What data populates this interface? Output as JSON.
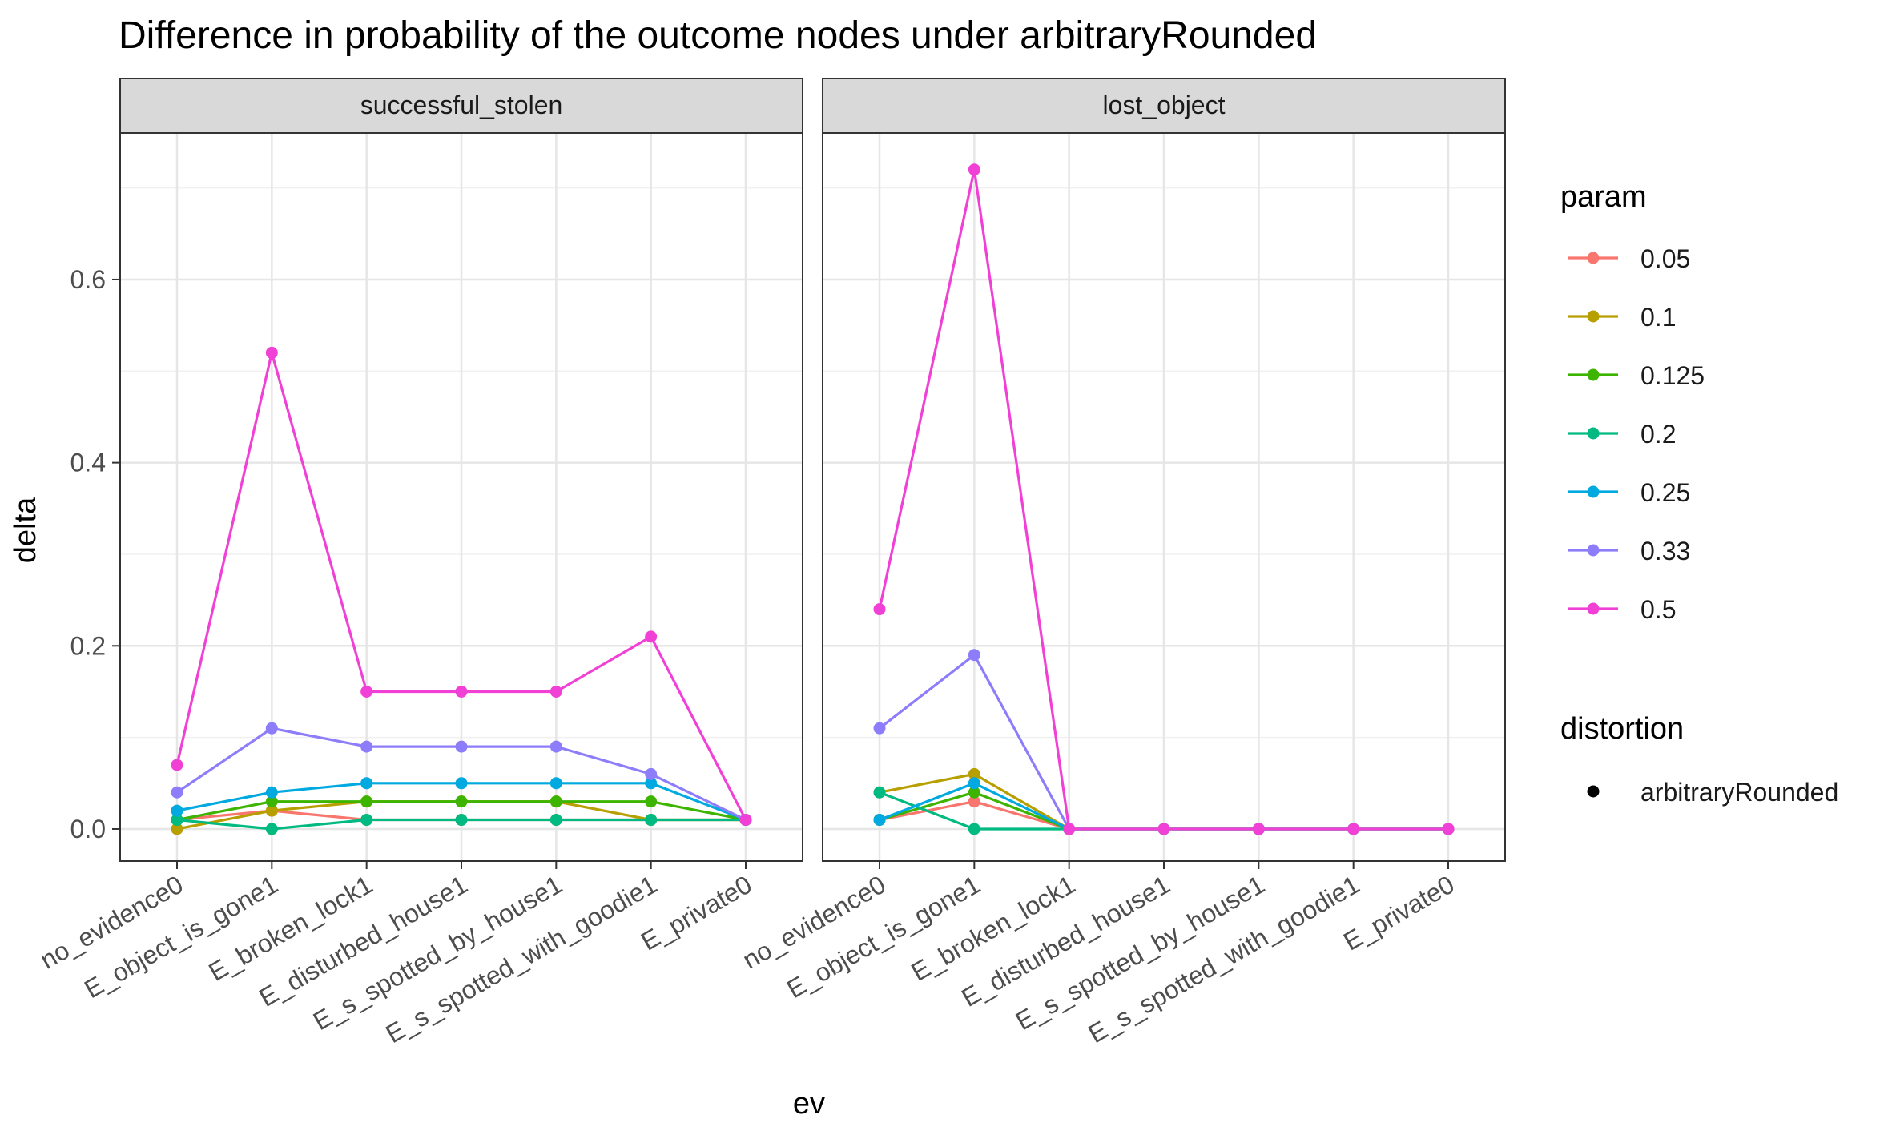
{
  "chart_data": {
    "type": "line",
    "title": "Difference in probability of the outcome nodes under arbitraryRounded",
    "xlabel": "ev",
    "ylabel": "delta",
    "ylim": [
      -0.035,
      0.76
    ],
    "yticks": [
      0.0,
      0.2,
      0.4,
      0.6
    ],
    "ytick_labels": [
      "0.0",
      "0.2",
      "0.4",
      "0.6"
    ],
    "grid": true,
    "legend_position": "right",
    "categories": [
      "no_evidence0",
      "E_object_is_gone1",
      "E_broken_lock1",
      "E_disturbed_house1",
      "E_s_spotted_by_house1",
      "E_s_spotted_with_goodie1",
      "E_private0"
    ],
    "legend": {
      "param_title": "param",
      "distortion_title": "distortion",
      "distortion_items": [
        {
          "label": "arbitraryRounded"
        }
      ]
    },
    "panels": [
      {
        "title": "successful_stolen",
        "series": [
          {
            "name": "0.05",
            "color": "#F8766D",
            "values": [
              0.01,
              0.02,
              0.01,
              0.01,
              0.01,
              0.01,
              0.01
            ]
          },
          {
            "name": "0.1",
            "color": "#B79F00",
            "values": [
              0.0,
              0.02,
              0.03,
              0.03,
              0.03,
              0.01,
              0.01
            ]
          },
          {
            "name": "0.125",
            "color": "#3DB400",
            "values": [
              0.01,
              0.03,
              0.03,
              0.03,
              0.03,
              0.03,
              0.01
            ]
          },
          {
            "name": "0.2",
            "color": "#00BA82",
            "values": [
              0.01,
              0.0,
              0.01,
              0.01,
              0.01,
              0.01,
              0.01
            ]
          },
          {
            "name": "0.25",
            "color": "#00A9E0",
            "values": [
              0.02,
              0.04,
              0.05,
              0.05,
              0.05,
              0.05,
              0.01
            ]
          },
          {
            "name": "0.33",
            "color": "#8D7DFA",
            "values": [
              0.04,
              0.11,
              0.09,
              0.09,
              0.09,
              0.06,
              0.01
            ]
          },
          {
            "name": "0.5",
            "color": "#F140D6",
            "values": [
              0.07,
              0.52,
              0.15,
              0.15,
              0.15,
              0.21,
              0.01
            ]
          }
        ]
      },
      {
        "title": "lost_object",
        "series": [
          {
            "name": "0.05",
            "color": "#F8766D",
            "values": [
              0.01,
              0.03,
              0.0,
              0.0,
              0.0,
              0.0,
              0.0
            ]
          },
          {
            "name": "0.1",
            "color": "#B79F00",
            "values": [
              0.04,
              0.06,
              0.0,
              0.0,
              0.0,
              0.0,
              0.0
            ]
          },
          {
            "name": "0.125",
            "color": "#3DB400",
            "values": [
              0.01,
              0.04,
              0.0,
              0.0,
              0.0,
              0.0,
              0.0
            ]
          },
          {
            "name": "0.2",
            "color": "#00BA82",
            "values": [
              0.04,
              0.0,
              0.0,
              0.0,
              0.0,
              0.0,
              0.0
            ]
          },
          {
            "name": "0.25",
            "color": "#00A9E0",
            "values": [
              0.01,
              0.05,
              0.0,
              0.0,
              0.0,
              0.0,
              0.0
            ]
          },
          {
            "name": "0.33",
            "color": "#8D7DFA",
            "values": [
              0.11,
              0.19,
              0.0,
              0.0,
              0.0,
              0.0,
              0.0
            ]
          },
          {
            "name": "0.5",
            "color": "#F140D6",
            "values": [
              0.24,
              0.72,
              0.0,
              0.0,
              0.0,
              0.0,
              0.0
            ]
          }
        ]
      }
    ]
  }
}
